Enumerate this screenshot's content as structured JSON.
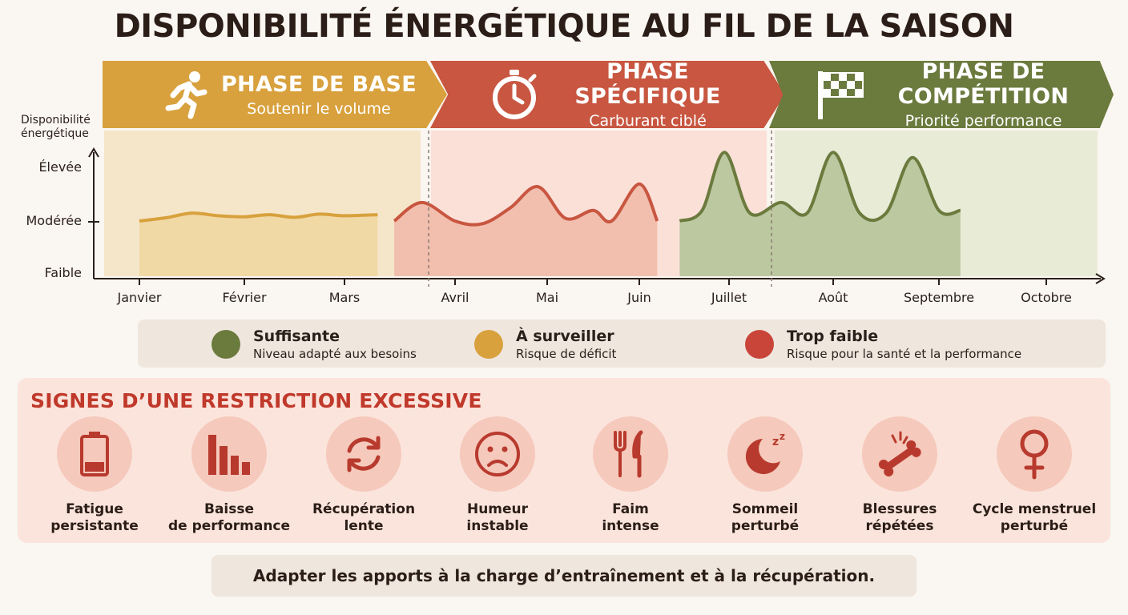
{
  "title": "DISPONIBILITÉ ÉNERGÉTIQUE AU FIL DE LA SAISON",
  "phases": [
    {
      "name": "PHASE DE BASE",
      "subtitle": "Soutenir le volume",
      "icon": "running-person-icon",
      "color": "#d8a13d"
    },
    {
      "name": "PHASE SPÉCIFIQUE",
      "subtitle": "Carburant ciblé",
      "icon": "stopwatch-icon",
      "color": "#c85640"
    },
    {
      "name": "PHASE DE COMPÉTITION",
      "subtitle": "Priorité performance",
      "icon": "checkered-flag-icon",
      "color": "#6b7a3d"
    }
  ],
  "axis": {
    "y_title_line1": "Disponibilité",
    "y_title_line2": "énergétique",
    "y_levels": [
      "Élevée",
      "Modérée",
      "Faible"
    ],
    "months": [
      "Janvier",
      "Février",
      "Mars",
      "Avril",
      "Mai",
      "Juin",
      "Juillet",
      "Août",
      "Septembre",
      "Octobre"
    ]
  },
  "chart_data": {
    "type": "area",
    "x": [
      "Janvier",
      "Février",
      "Mars",
      "Avril",
      "Mai",
      "Juin",
      "Juillet",
      "Août",
      "Septembre",
      "Octobre"
    ],
    "y_scale": "Faible (0) – Modérée (1) – Élevée (2)",
    "series": [
      {
        "name": "PHASE DE BASE",
        "x": [
          0.0,
          0.25,
          0.5,
          0.75,
          1.0,
          1.25,
          1.5,
          1.75,
          2.0,
          2.3
        ],
        "y": [
          1.0,
          1.06,
          1.15,
          1.1,
          1.08,
          1.12,
          1.07,
          1.13,
          1.1,
          1.12
        ],
        "color": "#d8a13d"
      },
      {
        "name": "PHASE SPÉCIFIQUE",
        "x": [
          2.45,
          2.7,
          3.0,
          3.3,
          3.6,
          3.9,
          4.2,
          4.5,
          4.7,
          5.0,
          5.2
        ],
        "y": [
          1.0,
          1.35,
          1.0,
          0.95,
          1.25,
          1.65,
          1.05,
          1.2,
          1.0,
          1.7,
          1.0
        ],
        "color": "#c85640"
      },
      {
        "name": "PHASE DE COMPÉTITION",
        "x": [
          5.45,
          5.7,
          5.95,
          6.2,
          6.5,
          6.75,
          7.0,
          7.25,
          7.5,
          7.75,
          8.0,
          8.2
        ],
        "y": [
          1.0,
          1.2,
          2.3,
          1.15,
          1.35,
          1.15,
          2.3,
          1.15,
          1.15,
          2.2,
          1.2,
          1.2
        ],
        "color": "#6b7a3d"
      }
    ],
    "phase_backgrounds": [
      "#f6e6c9",
      "#fbe0d8",
      "#e8ebd6"
    ]
  },
  "legend": [
    {
      "title": "Suffisante",
      "subtitle": "Niveau adapté aux besoins",
      "color": "#6b7a3d"
    },
    {
      "title": "À surveiller",
      "subtitle": "Risque de déficit",
      "color": "#d8a13d"
    },
    {
      "title": "Trop faible",
      "subtitle": "Risque pour la santé et la performance",
      "color": "#c9453a"
    }
  ],
  "signs": {
    "title": "SIGNES D’UNE RESTRICTION EXCESSIVE",
    "items": [
      {
        "line1": "Fatigue",
        "line2": "persistante",
        "icon": "low-battery-icon"
      },
      {
        "line1": "Baisse",
        "line2": "de performance",
        "icon": "declining-bars-icon"
      },
      {
        "line1": "Récupération",
        "line2": "lente",
        "icon": "refresh-arrows-icon"
      },
      {
        "line1": "Humeur",
        "line2": "instable",
        "icon": "sad-face-icon"
      },
      {
        "line1": "Faim",
        "line2": "intense",
        "icon": "fork-knife-icon"
      },
      {
        "line1": "Sommeil",
        "line2": "perturbé",
        "icon": "moon-sleep-icon"
      },
      {
        "line1": "Blessures",
        "line2": "répétées",
        "icon": "broken-bone-icon"
      },
      {
        "line1": "Cycle menstruel",
        "line2": "perturbé",
        "icon": "female-symbol-icon"
      }
    ]
  },
  "footer": "Adapter les apports à la charge d’entraînement et à la récupération."
}
